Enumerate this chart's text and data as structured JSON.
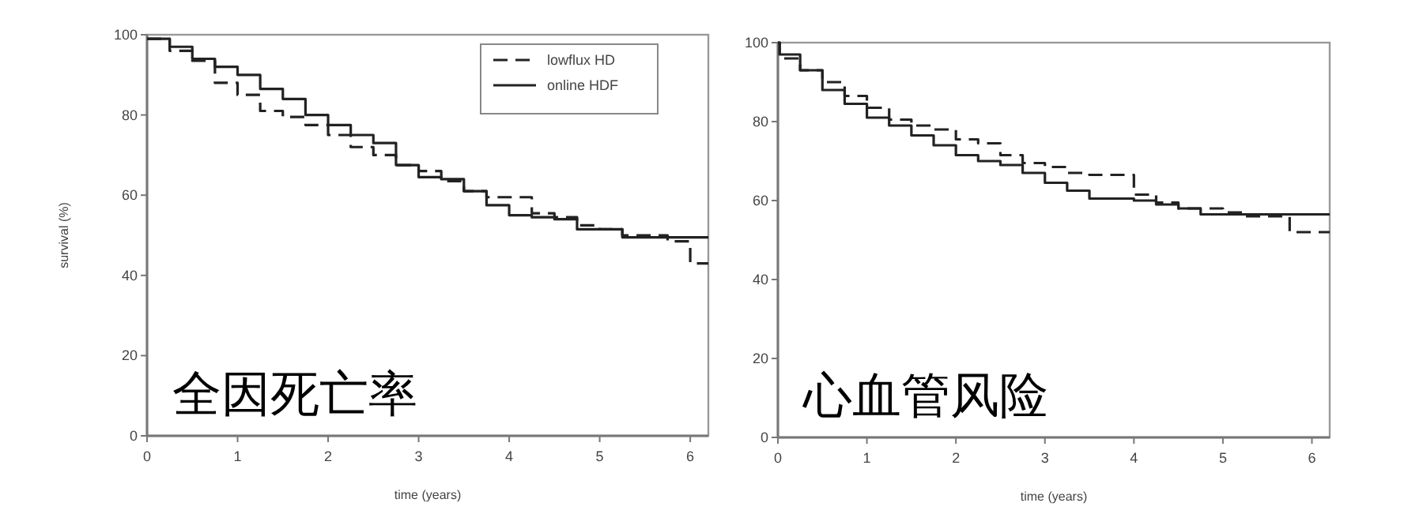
{
  "chart_data": [
    {
      "type": "step",
      "xlabel": "time (years)",
      "ylabel": "survival (%)",
      "xlim": [
        0,
        6.2
      ],
      "ylim": [
        0,
        100
      ],
      "xticks": [
        0,
        1,
        2,
        3,
        4,
        5,
        6
      ],
      "yticks": [
        0,
        20,
        40,
        60,
        80,
        100
      ],
      "legend": "top right",
      "grid": false,
      "annotations": [
        "全因死亡率"
      ],
      "series": [
        {
          "name": "lowflux HD",
          "color": "#222222",
          "line_style": "dashed",
          "x": [
            0,
            0.25,
            0.5,
            0.75,
            1.0,
            1.25,
            1.5,
            1.75,
            2.0,
            2.25,
            2.5,
            2.75,
            3.0,
            3.25,
            3.5,
            3.75,
            4.25,
            4.5,
            4.75,
            5.0,
            5.25,
            5.75,
            6.0,
            6.2
          ],
          "values": [
            99,
            96,
            93.5,
            88,
            85,
            81,
            79.5,
            77.5,
            75,
            72,
            70,
            67.5,
            66,
            63.5,
            61,
            59.5,
            55.5,
            54.5,
            52.5,
            51.5,
            50,
            48.5,
            43,
            43
          ]
        },
        {
          "name": "online HDF",
          "color": "#222222",
          "line_style": "solid",
          "x": [
            0,
            0.25,
            0.5,
            0.75,
            1.0,
            1.25,
            1.5,
            1.75,
            2.0,
            2.25,
            2.5,
            2.75,
            3.0,
            3.25,
            3.5,
            3.75,
            4.0,
            4.25,
            4.5,
            4.75,
            5.25,
            6.2
          ],
          "values": [
            99,
            97,
            94,
            92,
            90,
            86.5,
            84,
            80,
            77.5,
            75,
            73,
            67.5,
            64.5,
            64,
            61,
            57.5,
            55,
            54.5,
            54,
            51.5,
            49.5,
            49.5
          ]
        }
      ]
    },
    {
      "type": "step",
      "xlabel": "time (years)",
      "xlim": [
        0,
        6.2
      ],
      "ylim": [
        0,
        100
      ],
      "xticks": [
        0,
        1,
        2,
        3,
        4,
        5,
        6
      ],
      "yticks": [
        0,
        20,
        40,
        60,
        80,
        100
      ],
      "grid": false,
      "annotations": [
        "心血管风险"
      ],
      "series": [
        {
          "color": "#222222",
          "line_style": "dashed",
          "x": [
            0,
            0.02,
            0.25,
            0.5,
            0.75,
            1.0,
            1.25,
            1.5,
            1.75,
            2.0,
            2.25,
            2.5,
            2.75,
            3.0,
            3.25,
            3.5,
            4.0,
            4.25,
            4.5,
            5.0,
            5.25,
            5.75,
            6.2
          ],
          "values": [
            100,
            96,
            93,
            90,
            86.5,
            83.5,
            80.5,
            79,
            78,
            75.5,
            74.5,
            71.5,
            69.5,
            68.5,
            67,
            66.5,
            61.5,
            59.5,
            58,
            57,
            56,
            52,
            52
          ]
        },
        {
          "color": "#222222",
          "line_style": "solid",
          "x": [
            0,
            0.02,
            0.25,
            0.5,
            0.75,
            1.0,
            1.25,
            1.5,
            1.75,
            2.0,
            2.25,
            2.5,
            2.75,
            3.0,
            3.25,
            3.5,
            4.0,
            4.25,
            4.5,
            4.75,
            6.2
          ],
          "values": [
            100,
            97,
            93,
            88,
            84.5,
            81,
            79,
            76.5,
            74,
            71.5,
            70,
            69,
            67,
            64.5,
            62.5,
            60.5,
            60,
            59,
            58,
            56.5,
            56.5
          ]
        }
      ]
    }
  ]
}
